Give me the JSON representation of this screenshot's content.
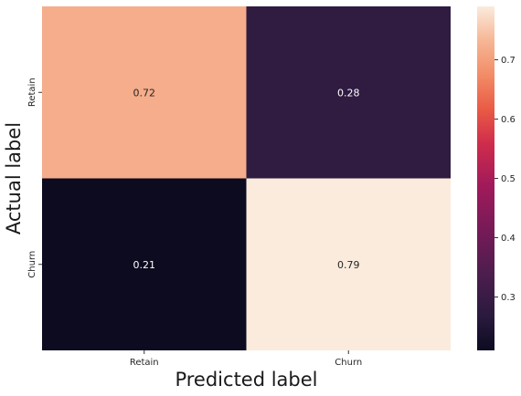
{
  "chart_data": {
    "type": "heatmap",
    "x_categories": [
      "Retain",
      "Churn"
    ],
    "y_categories": [
      "Retain",
      "Churn"
    ],
    "values": [
      [
        0.72,
        0.28
      ],
      [
        0.21,
        0.79
      ]
    ],
    "value_labels": [
      [
        "0.72",
        "0.28"
      ],
      [
        "0.21",
        "0.79"
      ]
    ],
    "xlabel": "Predicted label",
    "ylabel": "Actual label",
    "colorbar": {
      "range": [
        0.21,
        0.79
      ],
      "ticks": [
        0.3,
        0.4,
        0.5,
        0.6,
        0.7
      ],
      "tick_labels": [
        "0.3",
        "0.4",
        "0.5",
        "0.6",
        "0.7"
      ],
      "colormap": "rocket"
    },
    "grid": false
  }
}
